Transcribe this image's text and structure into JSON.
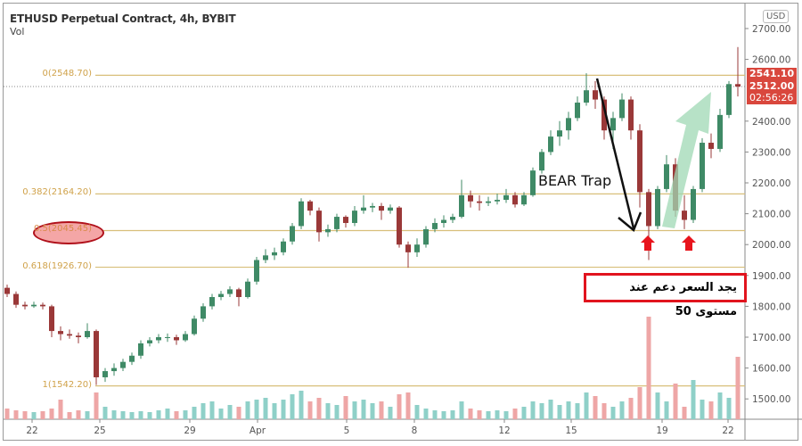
{
  "header": {
    "title": "ETHUSD Perpetual Contract, 4h, BYBIT",
    "indicator": "Vol",
    "currency": "USD"
  },
  "price_labels": {
    "upper": "2541.10",
    "last": "2512.00",
    "countdown": "02:56:26"
  },
  "annotations": {
    "bear_trap": "BEAR Trap",
    "arabic_note": "يجد السعر دعم عند مستوى 50",
    "highlight_level": "0.5(2045.45)",
    "colors": {
      "box": "#e1141e",
      "ellipse_fill": "#f4a6a6",
      "green_arrow": "#9fd8b4",
      "red_arrows": "#e8141c"
    }
  },
  "chart_data": {
    "type": "candlestick",
    "symbol": "ETHUSD",
    "interval": "4h",
    "y_ticks": [
      "2700.00",
      "2600.00",
      "2400.00",
      "2300.00",
      "2200.00",
      "2100.00",
      "2000.00",
      "1900.00",
      "1800.00",
      "1700.00",
      "1600.00",
      "1500.00"
    ],
    "ylim": [
      1400,
      2740
    ],
    "x_ticks": [
      "22",
      "25",
      "29",
      "Apr",
      "5",
      "8",
      "12",
      "15",
      "19",
      "22"
    ],
    "fib_levels": [
      {
        "label": "0(2548.70)",
        "value": 2548.7
      },
      {
        "label": "0.382(2164.20)",
        "value": 2164.2
      },
      {
        "label": "0.5(2045.45)",
        "value": 2045.45
      },
      {
        "label": "0.618(1926.70)",
        "value": 1926.7
      },
      {
        "label": "1(1542.20)",
        "value": 1542.2
      }
    ],
    "last_price": 2512.0,
    "colors": {
      "up": "#3f8a66",
      "down": "#9a3838",
      "vol_up": "#8fd0c8",
      "vol_down": "#eea6a6",
      "fib": "#d8bf7a"
    },
    "ohlc": [
      [
        1860,
        1870,
        1830,
        1840
      ],
      [
        1840,
        1848,
        1795,
        1805
      ],
      [
        1805,
        1815,
        1790,
        1800
      ],
      [
        1800,
        1815,
        1795,
        1805
      ],
      [
        1805,
        1812,
        1790,
        1800
      ],
      [
        1800,
        1805,
        1700,
        1720
      ],
      [
        1720,
        1735,
        1690,
        1710
      ],
      [
        1710,
        1725,
        1695,
        1705
      ],
      [
        1705,
        1715,
        1680,
        1700
      ],
      [
        1700,
        1745,
        1695,
        1720
      ],
      [
        1720,
        1725,
        1545,
        1570
      ],
      [
        1570,
        1600,
        1555,
        1590
      ],
      [
        1590,
        1615,
        1575,
        1600
      ],
      [
        1600,
        1630,
        1590,
        1620
      ],
      [
        1620,
        1650,
        1610,
        1640
      ],
      [
        1640,
        1690,
        1630,
        1680
      ],
      [
        1680,
        1700,
        1670,
        1690
      ],
      [
        1690,
        1710,
        1680,
        1700
      ],
      [
        1700,
        1712,
        1685,
        1700
      ],
      [
        1700,
        1708,
        1675,
        1690
      ],
      [
        1690,
        1720,
        1685,
        1710
      ],
      [
        1710,
        1770,
        1705,
        1760
      ],
      [
        1760,
        1810,
        1750,
        1800
      ],
      [
        1800,
        1840,
        1790,
        1830
      ],
      [
        1830,
        1850,
        1820,
        1840
      ],
      [
        1840,
        1865,
        1830,
        1855
      ],
      [
        1855,
        1860,
        1800,
        1830
      ],
      [
        1830,
        1890,
        1825,
        1880
      ],
      [
        1880,
        1960,
        1870,
        1950
      ],
      [
        1950,
        1985,
        1940,
        1965
      ],
      [
        1965,
        1990,
        1950,
        1975
      ],
      [
        1975,
        2020,
        1965,
        2010
      ],
      [
        2010,
        2070,
        2000,
        2060
      ],
      [
        2060,
        2150,
        2050,
        2140
      ],
      [
        2140,
        2145,
        2095,
        2110
      ],
      [
        2110,
        2120,
        2010,
        2040
      ],
      [
        2040,
        2065,
        2025,
        2050
      ],
      [
        2050,
        2100,
        2040,
        2090
      ],
      [
        2090,
        2095,
        2055,
        2070
      ],
      [
        2070,
        2125,
        2060,
        2110
      ],
      [
        2110,
        2160,
        2100,
        2120
      ],
      [
        2120,
        2135,
        2105,
        2125
      ],
      [
        2125,
        2135,
        2080,
        2110
      ],
      [
        2110,
        2130,
        2100,
        2120
      ],
      [
        2120,
        2125,
        1990,
        2000
      ],
      [
        2000,
        2010,
        1925,
        1975
      ],
      [
        1975,
        2020,
        1960,
        2000
      ],
      [
        2000,
        2060,
        1990,
        2050
      ],
      [
        2050,
        2085,
        2040,
        2070
      ],
      [
        2070,
        2095,
        2055,
        2080
      ],
      [
        2080,
        2100,
        2070,
        2090
      ],
      [
        2090,
        2210,
        2085,
        2160
      ],
      [
        2160,
        2175,
        2120,
        2140
      ],
      [
        2140,
        2160,
        2110,
        2135
      ],
      [
        2135,
        2155,
        2125,
        2140
      ],
      [
        2140,
        2165,
        2130,
        2145
      ],
      [
        2145,
        2180,
        2135,
        2160
      ],
      [
        2160,
        2170,
        2120,
        2130
      ],
      [
        2130,
        2170,
        2125,
        2160
      ],
      [
        2160,
        2250,
        2155,
        2240
      ],
      [
        2240,
        2310,
        2230,
        2300
      ],
      [
        2300,
        2370,
        2290,
        2350
      ],
      [
        2350,
        2400,
        2320,
        2370
      ],
      [
        2370,
        2430,
        2340,
        2410
      ],
      [
        2410,
        2480,
        2400,
        2460
      ],
      [
        2460,
        2555,
        2450,
        2500
      ],
      [
        2500,
        2530,
        2440,
        2470
      ],
      [
        2470,
        2480,
        2340,
        2370
      ],
      [
        2370,
        2430,
        2310,
        2410
      ],
      [
        2410,
        2490,
        2400,
        2470
      ],
      [
        2470,
        2480,
        2340,
        2370
      ],
      [
        2370,
        2390,
        2120,
        2170
      ],
      [
        2170,
        2180,
        1950,
        2060
      ],
      [
        2060,
        2190,
        2050,
        2180
      ],
      [
        2180,
        2290,
        2170,
        2260
      ],
      [
        2260,
        2280,
        2090,
        2110
      ],
      [
        2110,
        2160,
        2050,
        2080
      ],
      [
        2080,
        2190,
        2070,
        2180
      ],
      [
        2180,
        2345,
        2170,
        2330
      ],
      [
        2330,
        2360,
        2280,
        2310
      ],
      [
        2310,
        2440,
        2300,
        2420
      ],
      [
        2420,
        2530,
        2410,
        2520
      ],
      [
        2520,
        2640,
        2480,
        2512
      ]
    ],
    "volume": [
      12,
      10,
      9,
      8,
      9,
      12,
      22,
      8,
      10,
      9,
      30,
      14,
      10,
      9,
      8,
      9,
      8,
      10,
      12,
      9,
      10,
      14,
      18,
      20,
      12,
      16,
      14,
      20,
      22,
      24,
      18,
      22,
      28,
      32,
      20,
      24,
      18,
      16,
      26,
      20,
      22,
      18,
      20,
      14,
      28,
      30,
      16,
      12,
      10,
      9,
      10,
      20,
      12,
      10,
      9,
      10,
      9,
      12,
      14,
      20,
      18,
      22,
      16,
      20,
      18,
      30,
      26,
      18,
      14,
      20,
      24,
      36,
      115,
      30,
      20,
      40,
      14,
      44,
      22,
      20,
      30,
      24,
      70
    ]
  }
}
